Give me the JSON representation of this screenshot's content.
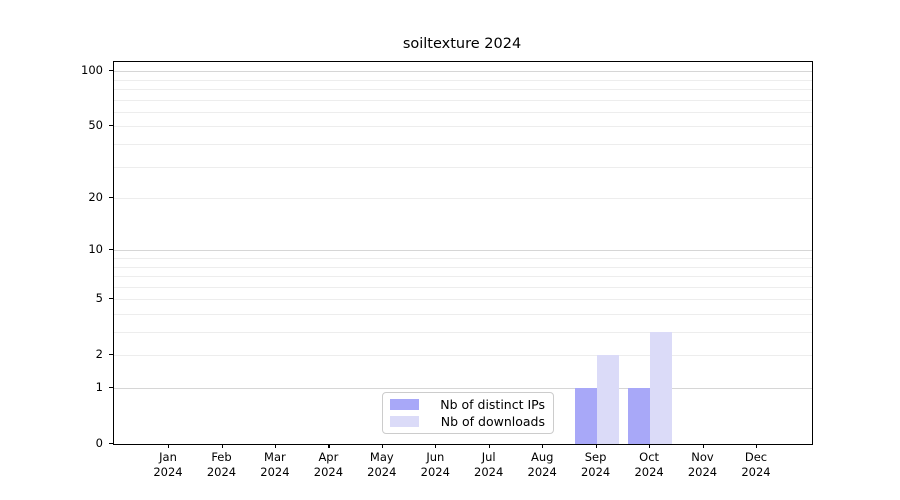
{
  "window": {
    "title": "soiltexture 2024"
  },
  "colors": {
    "distinct_ips_bar": "#a8a8f8",
    "downloads_bar": "#dbdbf8",
    "grid_major": "#d6d6d6",
    "grid_minor": "#ededed",
    "axis": "#000000",
    "legend_border": "#cccccc",
    "background": "#ffffff"
  },
  "chart_data": {
    "type": "bar",
    "title": "soiltexture 2024",
    "xlabel": "",
    "ylabel": "",
    "categories": [
      "Jan 2024",
      "Feb 2024",
      "Mar 2024",
      "Apr 2024",
      "May 2024",
      "Jun 2024",
      "Jul 2024",
      "Aug 2024",
      "Sep 2024",
      "Oct 2024",
      "Nov 2024",
      "Dec 2024"
    ],
    "series": [
      {
        "name": "Nb of distinct IPs",
        "color": "#a8a8f8",
        "values": [
          0,
          0,
          0,
          0,
          0,
          0,
          0,
          0,
          1,
          1,
          0,
          0
        ]
      },
      {
        "name": "Nb of downloads",
        "color": "#dbdbf8",
        "values": [
          0,
          0,
          0,
          0,
          0,
          0,
          0,
          0,
          2,
          3,
          0,
          0
        ]
      }
    ],
    "yscale": "log1p",
    "ylim": [
      0,
      112
    ],
    "yticks": [
      0,
      1,
      2,
      5,
      10,
      20,
      50,
      100
    ],
    "grid_values": [
      1,
      2,
      3,
      4,
      5,
      6,
      7,
      8,
      9,
      10,
      20,
      30,
      40,
      50,
      60,
      70,
      80,
      90,
      100
    ],
    "grid_major_at": [
      1,
      10,
      100
    ],
    "grid": true,
    "legend_position": "bottom-center",
    "legend_entries": [
      "Nb of distinct IPs",
      "Nb of downloads"
    ]
  }
}
